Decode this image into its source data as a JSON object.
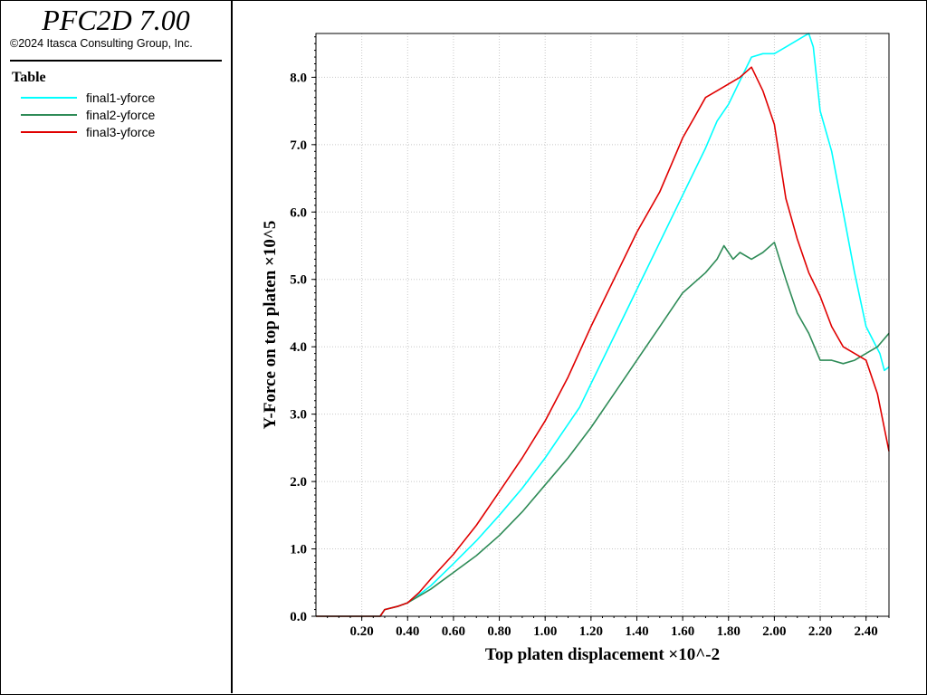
{
  "app": {
    "title": "PFC2D 7.00",
    "copyright": "©2024 Itasca Consulting Group, Inc."
  },
  "legend": {
    "heading": "Table",
    "items": [
      {
        "label": "final1-yforce",
        "color": "#00ffff"
      },
      {
        "label": "final2-yforce",
        "color": "#2e8b57"
      },
      {
        "label": "final3-yforce",
        "color": "#e00000"
      }
    ]
  },
  "chart_data": {
    "type": "line",
    "title": "",
    "xlabel": "Top platen displacement ×10^-2",
    "ylabel": "Y-Force on top platen ×10^5",
    "xlim": [
      0.0,
      2.5
    ],
    "ylim": [
      0.0,
      8.65
    ],
    "x_ticks": [
      "0.20",
      "0.40",
      "0.60",
      "0.80",
      "1.00",
      "1.20",
      "1.40",
      "1.60",
      "1.80",
      "2.00",
      "2.20",
      "2.40"
    ],
    "y_ticks": [
      "0.0",
      "1.0",
      "2.0",
      "3.0",
      "4.0",
      "5.0",
      "6.0",
      "7.0",
      "8.0"
    ],
    "grid": true,
    "series": [
      {
        "name": "final1-yforce",
        "color": "#00ffff",
        "points": [
          [
            0.0,
            0.0
          ],
          [
            0.28,
            0.0
          ],
          [
            0.3,
            0.1
          ],
          [
            0.36,
            0.15
          ],
          [
            0.4,
            0.2
          ],
          [
            0.45,
            0.32
          ],
          [
            0.5,
            0.45
          ],
          [
            0.6,
            0.78
          ],
          [
            0.7,
            1.12
          ],
          [
            0.8,
            1.5
          ],
          [
            0.9,
            1.9
          ],
          [
            1.0,
            2.35
          ],
          [
            1.1,
            2.85
          ],
          [
            1.15,
            3.1
          ],
          [
            1.2,
            3.45
          ],
          [
            1.3,
            4.15
          ],
          [
            1.4,
            4.85
          ],
          [
            1.5,
            5.55
          ],
          [
            1.6,
            6.25
          ],
          [
            1.7,
            6.95
          ],
          [
            1.75,
            7.35
          ],
          [
            1.8,
            7.6
          ],
          [
            1.85,
            7.95
          ],
          [
            1.9,
            8.3
          ],
          [
            1.95,
            8.35
          ],
          [
            2.0,
            8.35
          ],
          [
            2.05,
            8.45
          ],
          [
            2.1,
            8.55
          ],
          [
            2.15,
            8.65
          ],
          [
            2.17,
            8.45
          ],
          [
            2.2,
            7.5
          ],
          [
            2.25,
            6.9
          ],
          [
            2.3,
            6.0
          ],
          [
            2.35,
            5.1
          ],
          [
            2.4,
            4.3
          ],
          [
            2.43,
            4.1
          ],
          [
            2.46,
            3.9
          ],
          [
            2.48,
            3.65
          ],
          [
            2.5,
            3.7
          ]
        ]
      },
      {
        "name": "final2-yforce",
        "color": "#2e8b57",
        "points": [
          [
            0.0,
            0.0
          ],
          [
            0.28,
            0.0
          ],
          [
            0.3,
            0.1
          ],
          [
            0.36,
            0.15
          ],
          [
            0.4,
            0.2
          ],
          [
            0.45,
            0.3
          ],
          [
            0.5,
            0.4
          ],
          [
            0.6,
            0.65
          ],
          [
            0.7,
            0.9
          ],
          [
            0.8,
            1.2
          ],
          [
            0.9,
            1.55
          ],
          [
            1.0,
            1.95
          ],
          [
            1.1,
            2.35
          ],
          [
            1.2,
            2.8
          ],
          [
            1.3,
            3.3
          ],
          [
            1.4,
            3.8
          ],
          [
            1.5,
            4.3
          ],
          [
            1.6,
            4.8
          ],
          [
            1.7,
            5.1
          ],
          [
            1.75,
            5.3
          ],
          [
            1.78,
            5.5
          ],
          [
            1.82,
            5.3
          ],
          [
            1.85,
            5.4
          ],
          [
            1.9,
            5.3
          ],
          [
            1.95,
            5.4
          ],
          [
            2.0,
            5.55
          ],
          [
            2.05,
            5.0
          ],
          [
            2.1,
            4.5
          ],
          [
            2.15,
            4.2
          ],
          [
            2.2,
            3.8
          ],
          [
            2.25,
            3.8
          ],
          [
            2.3,
            3.75
          ],
          [
            2.35,
            3.8
          ],
          [
            2.4,
            3.9
          ],
          [
            2.45,
            4.0
          ],
          [
            2.5,
            4.2
          ]
        ]
      },
      {
        "name": "final3-yforce",
        "color": "#e00000",
        "points": [
          [
            0.0,
            0.0
          ],
          [
            0.28,
            0.0
          ],
          [
            0.3,
            0.1
          ],
          [
            0.36,
            0.15
          ],
          [
            0.4,
            0.2
          ],
          [
            0.45,
            0.35
          ],
          [
            0.5,
            0.55
          ],
          [
            0.6,
            0.92
          ],
          [
            0.7,
            1.35
          ],
          [
            0.8,
            1.85
          ],
          [
            0.9,
            2.35
          ],
          [
            1.0,
            2.9
          ],
          [
            1.1,
            3.55
          ],
          [
            1.12,
            3.7
          ],
          [
            1.2,
            4.3
          ],
          [
            1.3,
            5.0
          ],
          [
            1.4,
            5.7
          ],
          [
            1.5,
            6.3
          ],
          [
            1.55,
            6.7
          ],
          [
            1.6,
            7.1
          ],
          [
            1.65,
            7.4
          ],
          [
            1.7,
            7.7
          ],
          [
            1.75,
            7.8
          ],
          [
            1.8,
            7.9
          ],
          [
            1.85,
            8.0
          ],
          [
            1.9,
            8.15
          ],
          [
            1.95,
            7.8
          ],
          [
            2.0,
            7.3
          ],
          [
            2.05,
            6.2
          ],
          [
            2.1,
            5.6
          ],
          [
            2.15,
            5.1
          ],
          [
            2.2,
            4.75
          ],
          [
            2.25,
            4.3
          ],
          [
            2.3,
            4.0
          ],
          [
            2.35,
            3.9
          ],
          [
            2.4,
            3.8
          ],
          [
            2.45,
            3.3
          ],
          [
            2.5,
            2.45
          ]
        ]
      }
    ]
  }
}
